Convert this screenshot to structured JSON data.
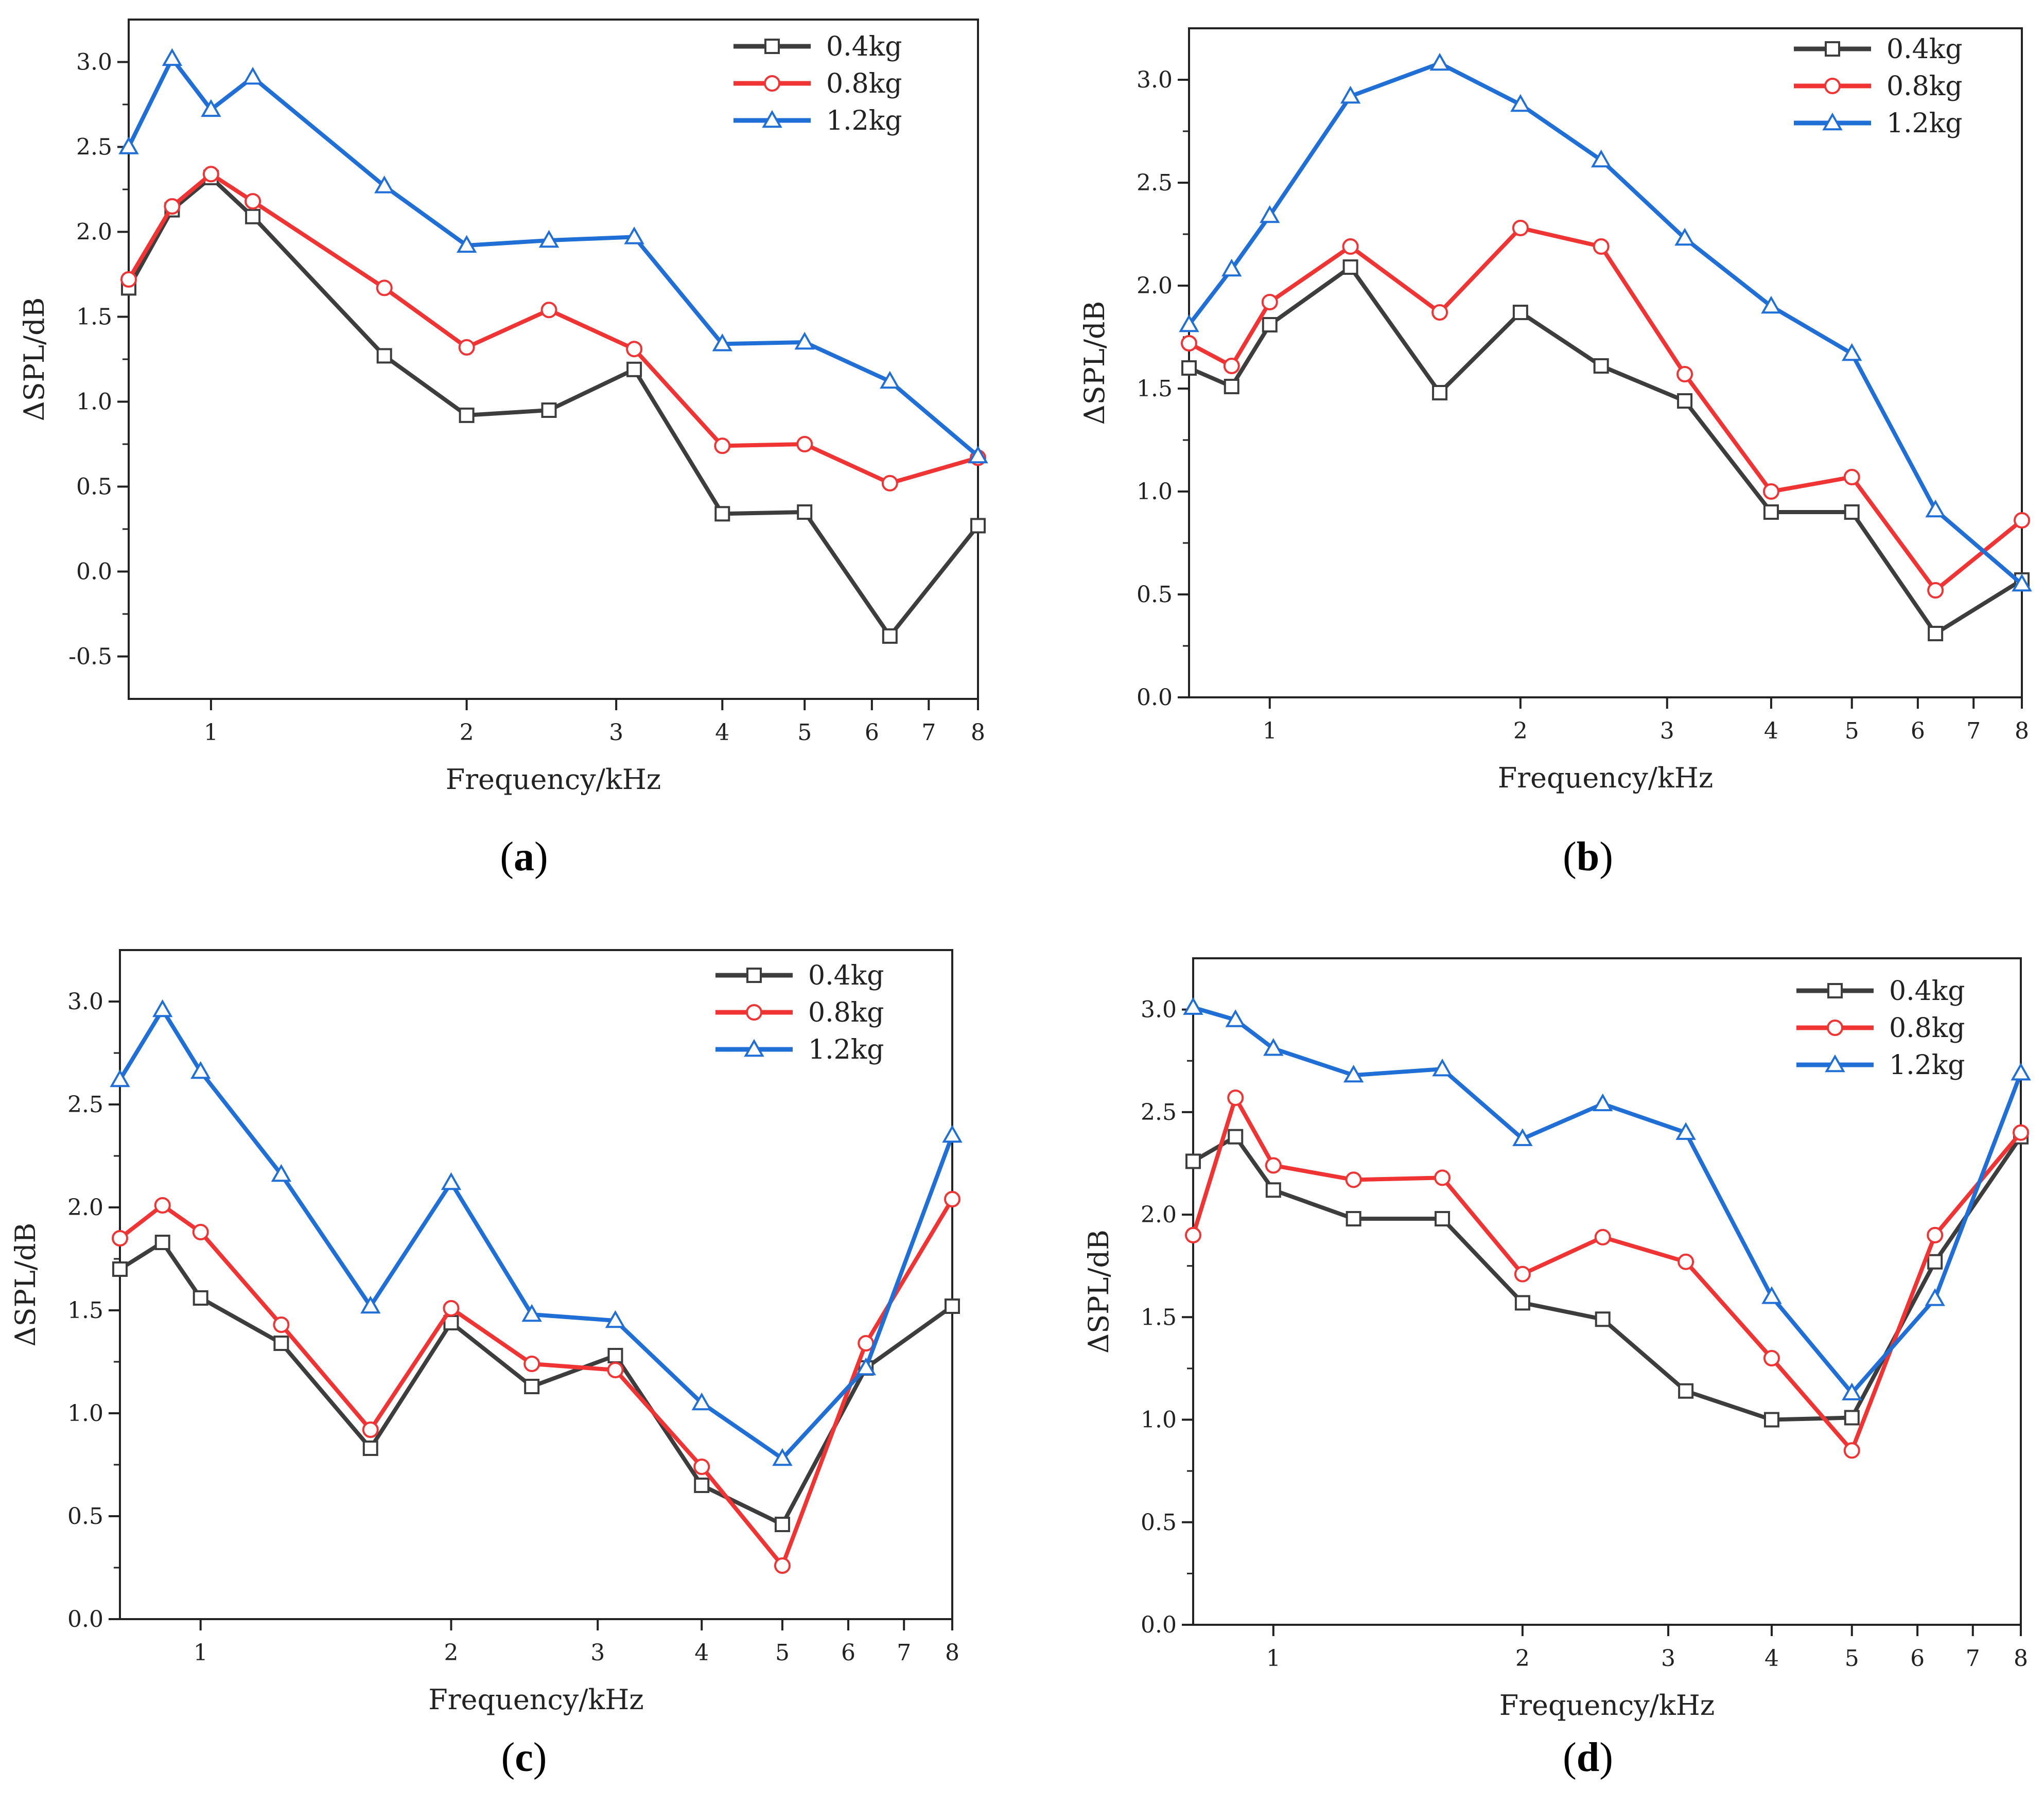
{
  "figure": {
    "colors": {
      "0.4kg": "#3d3d3d",
      "0.8kg": "#f03434",
      "1.2kg": "#1f6fd6"
    }
  },
  "chart_data": [
    {
      "panel": "a",
      "caption": {
        "open": "(",
        "letter": "a",
        "close": ")"
      },
      "type": "line",
      "xscale": "log",
      "xlabel": "Frequency/kHz",
      "ylabel": "ΔSPL/dB",
      "xlim": [
        0.8,
        8
      ],
      "ylim": [
        -0.75,
        3.25
      ],
      "xticks": [
        1,
        2,
        3,
        4,
        5,
        6,
        7,
        8
      ],
      "yticks": [
        -0.5,
        0.0,
        0.5,
        1.0,
        1.5,
        2.0,
        2.5,
        3.0
      ],
      "ytick_labels": [
        "-0.5",
        "0.0",
        "0.5",
        "1.0",
        "1.5",
        "2.0",
        "2.5",
        "3.0"
      ],
      "legend": [
        "0.4kg",
        "0.8kg",
        "1.2kg"
      ],
      "legend_loc": "top-right",
      "series": [
        {
          "name": "0.4kg",
          "marker": "square",
          "x": [
            0.8,
            0.9,
            1.0,
            1.12,
            1.6,
            2.0,
            2.5,
            3.15,
            4.0,
            5.0,
            6.3,
            8.0
          ],
          "y": [
            1.67,
            2.13,
            2.32,
            2.09,
            1.27,
            0.92,
            0.95,
            1.19,
            0.34,
            0.35,
            -0.38,
            0.27
          ]
        },
        {
          "name": "0.8kg",
          "marker": "circle",
          "x": [
            0.8,
            0.9,
            1.0,
            1.12,
            1.6,
            2.0,
            2.5,
            3.15,
            4.0,
            5.0,
            6.3,
            8.0
          ],
          "y": [
            1.72,
            2.15,
            2.34,
            2.18,
            1.67,
            1.32,
            1.54,
            1.31,
            0.74,
            0.75,
            0.52,
            0.67
          ]
        },
        {
          "name": "1.2kg",
          "marker": "triangle",
          "x": [
            0.8,
            0.9,
            1.0,
            1.12,
            1.6,
            2.0,
            2.5,
            3.15,
            4.0,
            5.0,
            6.3,
            8.0
          ],
          "y": [
            2.5,
            3.02,
            2.72,
            2.91,
            2.27,
            1.92,
            1.95,
            1.97,
            1.34,
            1.35,
            1.12,
            0.68
          ]
        }
      ]
    },
    {
      "panel": "b",
      "caption": {
        "open": "(",
        "letter": "b",
        "close": ")"
      },
      "type": "line",
      "xscale": "log",
      "xlabel": "Frequency/kHz",
      "ylabel": "ΔSPL/dB",
      "xlim": [
        0.8,
        8
      ],
      "ylim": [
        0,
        3.25
      ],
      "xticks": [
        1,
        2,
        3,
        4,
        5,
        6,
        7,
        8
      ],
      "yticks": [
        0.0,
        0.5,
        1.0,
        1.5,
        2.0,
        2.5,
        3.0
      ],
      "ytick_labels": [
        "0.0",
        "0.5",
        "1.0",
        "1.5",
        "2.0",
        "2.5",
        "3.0"
      ],
      "legend": [
        "0.4kg",
        "0.8kg",
        "1.2kg"
      ],
      "legend_loc": "top-right",
      "series": [
        {
          "name": "0.4kg",
          "marker": "square",
          "x": [
            0.8,
            0.9,
            1.0,
            1.25,
            1.6,
            2.0,
            2.5,
            3.15,
            4.0,
            5.0,
            6.3,
            8.0
          ],
          "y": [
            1.6,
            1.51,
            1.81,
            2.09,
            1.48,
            1.87,
            1.61,
            1.44,
            0.9,
            0.9,
            0.31,
            0.57
          ]
        },
        {
          "name": "0.8kg",
          "marker": "circle",
          "x": [
            0.8,
            0.9,
            1.0,
            1.25,
            1.6,
            2.0,
            2.5,
            3.15,
            4.0,
            5.0,
            6.3,
            8.0
          ],
          "y": [
            1.72,
            1.61,
            1.92,
            2.19,
            1.87,
            2.28,
            2.19,
            1.57,
            1.0,
            1.07,
            0.52,
            0.86
          ]
        },
        {
          "name": "1.2kg",
          "marker": "triangle",
          "x": [
            0.8,
            0.9,
            1.0,
            1.25,
            1.6,
            2.0,
            2.5,
            3.15,
            4.0,
            5.0,
            6.3,
            8.0
          ],
          "y": [
            1.81,
            2.08,
            2.34,
            2.92,
            3.08,
            2.88,
            2.61,
            2.23,
            1.9,
            1.67,
            0.91,
            0.55
          ]
        }
      ]
    },
    {
      "panel": "c",
      "caption": {
        "open": "(",
        "letter": "c",
        "close": ")"
      },
      "type": "line",
      "xscale": "log",
      "xlabel": "Frequency/kHz",
      "ylabel": "ΔSPL/dB",
      "xlim": [
        0.8,
        8
      ],
      "ylim": [
        0,
        3.25
      ],
      "xticks": [
        1,
        2,
        3,
        4,
        5,
        6,
        7,
        8
      ],
      "yticks": [
        0.0,
        0.5,
        1.0,
        1.5,
        2.0,
        2.5,
        3.0
      ],
      "ytick_labels": [
        "0.0",
        "0.5",
        "1.0",
        "1.5",
        "2.0",
        "2.5",
        "3.0"
      ],
      "legend": [
        "0.4kg",
        "0.8kg",
        "1.2kg"
      ],
      "legend_loc": "top-right",
      "series": [
        {
          "name": "0.4kg",
          "marker": "square",
          "x": [
            0.8,
            0.9,
            1.0,
            1.25,
            1.6,
            2.0,
            2.5,
            3.15,
            4.0,
            5.0,
            6.3,
            8.0
          ],
          "y": [
            1.7,
            1.83,
            1.56,
            1.34,
            0.83,
            1.44,
            1.13,
            1.28,
            0.65,
            0.46,
            1.22,
            1.52
          ]
        },
        {
          "name": "0.8kg",
          "marker": "circle",
          "x": [
            0.8,
            0.9,
            1.0,
            1.25,
            1.6,
            2.0,
            2.5,
            3.15,
            4.0,
            5.0,
            6.3,
            8.0
          ],
          "y": [
            1.85,
            2.01,
            1.88,
            1.43,
            0.92,
            1.51,
            1.24,
            1.21,
            0.74,
            0.26,
            1.34,
            2.04
          ]
        },
        {
          "name": "1.2kg",
          "marker": "triangle",
          "x": [
            0.8,
            0.9,
            1.0,
            1.25,
            1.6,
            2.0,
            2.5,
            3.15,
            4.0,
            5.0,
            6.3,
            8.0
          ],
          "y": [
            2.62,
            2.96,
            2.66,
            2.16,
            1.52,
            2.12,
            1.48,
            1.45,
            1.05,
            0.78,
            1.22,
            2.35
          ]
        }
      ]
    },
    {
      "panel": "d",
      "caption": {
        "open": "(",
        "letter": "d",
        "close": ")"
      },
      "type": "line",
      "xscale": "log",
      "xlabel": "Frequency/kHz",
      "ylabel": "ΔSPL/dB",
      "xlim": [
        0.8,
        8
      ],
      "ylim": [
        0,
        3.25
      ],
      "xticks": [
        1,
        2,
        3,
        4,
        5,
        6,
        7,
        8
      ],
      "yticks": [
        0.0,
        0.5,
        1.0,
        1.5,
        2.0,
        2.5,
        3.0
      ],
      "ytick_labels": [
        "0.0",
        "0.5",
        "1.0",
        "1.5",
        "2.0",
        "2.5",
        "3.0"
      ],
      "legend": [
        "0.4kg",
        "0.8kg",
        "1.2kg"
      ],
      "legend_loc": "top-right",
      "series": [
        {
          "name": "0.4kg",
          "marker": "square",
          "x": [
            0.8,
            0.9,
            1.0,
            1.25,
            1.6,
            2.0,
            2.5,
            3.15,
            4.0,
            5.0,
            6.3,
            8.0
          ],
          "y": [
            2.26,
            2.38,
            2.12,
            1.98,
            1.98,
            1.57,
            1.49,
            1.14,
            1.0,
            1.01,
            1.77,
            2.38
          ]
        },
        {
          "name": "0.8kg",
          "marker": "circle",
          "x": [
            0.8,
            0.9,
            1.0,
            1.25,
            1.6,
            2.0,
            2.5,
            3.15,
            4.0,
            5.0,
            6.3,
            8.0
          ],
          "y": [
            1.9,
            2.57,
            2.24,
            2.17,
            2.18,
            1.71,
            1.89,
            1.77,
            1.3,
            0.85,
            1.9,
            2.4
          ]
        },
        {
          "name": "1.2kg",
          "marker": "triangle",
          "x": [
            0.8,
            0.9,
            1.0,
            1.25,
            1.6,
            2.0,
            2.5,
            3.15,
            4.0,
            5.0,
            6.3,
            8.0
          ],
          "y": [
            3.01,
            2.95,
            2.81,
            2.68,
            2.71,
            2.37,
            2.54,
            2.4,
            1.6,
            1.13,
            1.59,
            2.69
          ]
        }
      ]
    }
  ]
}
